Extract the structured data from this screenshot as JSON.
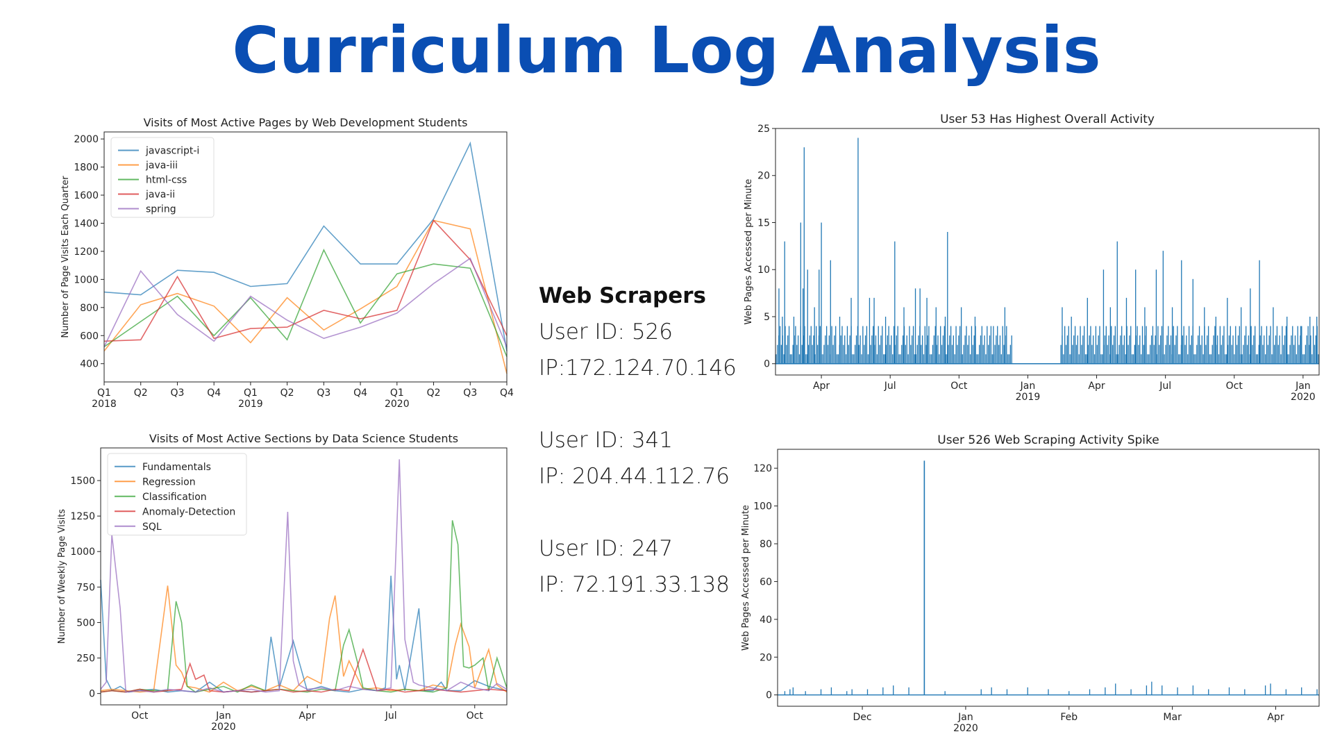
{
  "title": "Curriculum Log Analysis",
  "scrapers": {
    "heading": "Web Scrapers",
    "entries": [
      {
        "user": "User ID: 526",
        "ip": "IP:172.124.70.146"
      },
      {
        "user": "User ID: 341",
        "ip": "IP: 204.44.112.76"
      },
      {
        "user": "User ID: 247",
        "ip": "IP: 72.191.33.138"
      }
    ]
  },
  "colors": {
    "title": "#0a4eb3",
    "c0": "#1f77b4",
    "c1": "#ff7f0e",
    "c2": "#2ca02c",
    "c3": "#d62728",
    "c4": "#9467bd"
  },
  "chart_data": [
    {
      "id": "webdev",
      "type": "line",
      "title": "Visits of Most Active Pages by Web Development Students",
      "xlabel": "",
      "ylabel": "Number of Page Visits Each Quarter",
      "x_ticks": [
        {
          "label": "Q1",
          "sub": "2018"
        },
        {
          "label": "Q2",
          "sub": ""
        },
        {
          "label": "Q3",
          "sub": ""
        },
        {
          "label": "Q4",
          "sub": ""
        },
        {
          "label": "Q1",
          "sub": "2019"
        },
        {
          "label": "Q2",
          "sub": ""
        },
        {
          "label": "Q3",
          "sub": ""
        },
        {
          "label": "Q4",
          "sub": ""
        },
        {
          "label": "Q1",
          "sub": "2020"
        },
        {
          "label": "Q2",
          "sub": ""
        },
        {
          "label": "Q3",
          "sub": ""
        },
        {
          "label": "Q4",
          "sub": ""
        }
      ],
      "y_ticks": [
        400,
        600,
        800,
        1000,
        1200,
        1400,
        1600,
        1800,
        2000
      ],
      "ylim": [
        270,
        2050
      ],
      "legend": "top-left",
      "series": [
        {
          "name": "javascript-i",
          "values": [
            910,
            890,
            1065,
            1050,
            950,
            970,
            1380,
            1110,
            1110,
            1430,
            1970,
            490
          ]
        },
        {
          "name": "java-iii",
          "values": [
            490,
            820,
            900,
            810,
            550,
            870,
            640,
            790,
            950,
            1420,
            1360,
            330
          ]
        },
        {
          "name": "html-css",
          "values": [
            520,
            700,
            880,
            600,
            870,
            570,
            1210,
            690,
            1040,
            1110,
            1080,
            450
          ]
        },
        {
          "name": "java-ii",
          "values": [
            560,
            570,
            1020,
            580,
            650,
            660,
            780,
            720,
            780,
            1420,
            1140,
            600
          ]
        },
        {
          "name": "spring",
          "values": [
            520,
            1060,
            750,
            560,
            880,
            710,
            580,
            660,
            760,
            970,
            1150,
            520
          ]
        }
      ]
    },
    {
      "id": "datasci",
      "type": "line",
      "title": "Visits of Most Active Sections by Data Science Students",
      "xlabel": "",
      "ylabel": "Number of Weekly Page Visits",
      "x_ticks": [
        {
          "label": "Oct",
          "sub": "",
          "pos": 2.5
        },
        {
          "label": "Jan",
          "sub": "2020",
          "pos": 5.5
        },
        {
          "label": "Apr",
          "sub": "",
          "pos": 8.5
        },
        {
          "label": "Jul",
          "sub": "",
          "pos": 11.5
        },
        {
          "label": "Oct",
          "sub": "",
          "pos": 14.5
        }
      ],
      "y_ticks": [
        0,
        250,
        500,
        750,
        1000,
        1250,
        1500
      ],
      "xlim": [
        1.1,
        15.65
      ],
      "ylim": [
        -80,
        1730
      ],
      "legend": "top-left",
      "series": [
        {
          "name": "Fundamentals",
          "x": [
            1.1,
            1.3,
            1.5,
            1.8,
            2.1,
            2.5,
            3,
            3.5,
            4,
            4.5,
            5,
            5.5,
            6,
            6.5,
            7,
            7.2,
            7.5,
            8,
            8.5,
            9,
            9.5,
            10,
            10.5,
            11,
            11.3,
            11.5,
            11.7,
            11.8,
            12,
            12.5,
            12.7,
            13,
            13.3,
            13.5,
            14,
            14.5,
            15,
            15.65
          ],
          "y": [
            800,
            100,
            20,
            50,
            10,
            20,
            30,
            10,
            20,
            10,
            80,
            10,
            20,
            10,
            20,
            400,
            40,
            370,
            20,
            50,
            20,
            10,
            30,
            20,
            40,
            830,
            100,
            200,
            20,
            600,
            20,
            20,
            80,
            20,
            20,
            90,
            50,
            20
          ]
        },
        {
          "name": "Regression",
          "x": [
            1.1,
            1.5,
            2,
            2.5,
            3,
            3.5,
            3.8,
            4,
            4.2,
            4.5,
            5,
            5.5,
            6,
            6.5,
            7,
            7.5,
            8,
            8.5,
            9,
            9.3,
            9.5,
            9.8,
            10,
            10.5,
            11,
            11.5,
            12,
            12.5,
            13,
            13.5,
            13.8,
            14,
            14.3,
            14.5,
            14.8,
            15,
            15.3,
            15.65
          ],
          "y": [
            20,
            30,
            20,
            10,
            20,
            760,
            200,
            150,
            50,
            40,
            10,
            80,
            20,
            50,
            20,
            60,
            20,
            120,
            70,
            530,
            690,
            120,
            230,
            30,
            40,
            20,
            30,
            20,
            60,
            40,
            340,
            490,
            330,
            40,
            200,
            310,
            60,
            10
          ]
        },
        {
          "name": "Classification",
          "x": [
            1.1,
            1.5,
            2,
            2.5,
            3,
            3.5,
            3.8,
            4,
            4.2,
            4.5,
            5,
            5.5,
            6,
            6.5,
            7,
            7.5,
            8,
            8.5,
            9,
            9.5,
            9.8,
            10,
            10.3,
            10.5,
            11,
            11.5,
            12,
            12.5,
            13,
            13.5,
            13.7,
            13.9,
            14.1,
            14.3,
            14.5,
            14.8,
            15,
            15.3,
            15.65
          ],
          "y": [
            10,
            20,
            10,
            30,
            20,
            20,
            650,
            500,
            50,
            10,
            30,
            50,
            10,
            60,
            20,
            30,
            20,
            10,
            30,
            20,
            340,
            450,
            220,
            40,
            20,
            10,
            30,
            20,
            10,
            40,
            1220,
            1050,
            190,
            180,
            200,
            250,
            20,
            250,
            40
          ]
        },
        {
          "name": "Anomaly-Detection",
          "x": [
            1.1,
            1.5,
            2,
            2.5,
            3,
            3.5,
            4,
            4.3,
            4.5,
            4.8,
            5,
            5.5,
            6,
            6.5,
            7,
            7.5,
            8,
            8.5,
            9,
            9.5,
            10,
            10.5,
            11,
            11.5,
            12,
            12.5,
            13,
            13.5,
            14,
            14.5,
            15,
            15.65
          ],
          "y": [
            10,
            20,
            10,
            30,
            10,
            20,
            30,
            210,
            100,
            130,
            20,
            10,
            20,
            10,
            20,
            30,
            10,
            20,
            10,
            30,
            20,
            310,
            20,
            30,
            10,
            20,
            30,
            20,
            10,
            20,
            30,
            20
          ]
        },
        {
          "name": "SQL",
          "x": [
            1.1,
            1.3,
            1.5,
            1.8,
            2,
            2.5,
            3,
            3.5,
            4,
            4.5,
            5,
            5.5,
            6,
            6.5,
            7,
            7.5,
            7.8,
            8,
            8.2,
            8.5,
            9,
            9.5,
            10,
            10.5,
            11,
            11.5,
            11.8,
            12,
            12.3,
            12.5,
            13,
            13.5,
            14,
            14.5,
            15,
            15.3,
            15.65
          ],
          "y": [
            30,
            80,
            1120,
            600,
            10,
            20,
            10,
            30,
            20,
            10,
            40,
            10,
            20,
            30,
            10,
            20,
            1280,
            230,
            60,
            30,
            40,
            20,
            50,
            30,
            20,
            40,
            1650,
            380,
            80,
            60,
            40,
            20,
            80,
            40,
            20,
            70,
            30
          ]
        }
      ]
    },
    {
      "id": "user53",
      "type": "line",
      "title": "User 53 Has Highest Overall Activity",
      "xlabel": "",
      "ylabel": "Web Pages Accessed per Minute",
      "x_ticks": [
        {
          "label": "Apr",
          "sub": "",
          "pos": 2
        },
        {
          "label": "Jul",
          "sub": "",
          "pos": 5
        },
        {
          "label": "Oct",
          "sub": "",
          "pos": 8
        },
        {
          "label": "Jan",
          "sub": "2019",
          "pos": 11
        },
        {
          "label": "Apr",
          "sub": "",
          "pos": 14
        },
        {
          "label": "Jul",
          "sub": "",
          "pos": 17
        },
        {
          "label": "Oct",
          "sub": "",
          "pos": 20
        },
        {
          "label": "Jan",
          "sub": "2020",
          "pos": 23
        }
      ],
      "y_ticks": [
        0,
        5,
        10,
        15,
        20,
        25
      ],
      "xlim": [
        0,
        23.7
      ],
      "ylim": [
        -1.2,
        25
      ],
      "gap": [
        10.3,
        12.4
      ],
      "spikes": [
        {
          "x": 0.15,
          "y": 8
        },
        {
          "x": 0.3,
          "y": 5
        },
        {
          "x": 0.4,
          "y": 13
        },
        {
          "x": 0.8,
          "y": 5
        },
        {
          "x": 1.1,
          "y": 15
        },
        {
          "x": 1.2,
          "y": 8
        },
        {
          "x": 1.25,
          "y": 23
        },
        {
          "x": 1.4,
          "y": 10
        },
        {
          "x": 1.7,
          "y": 6
        },
        {
          "x": 1.9,
          "y": 10
        },
        {
          "x": 2.0,
          "y": 15
        },
        {
          "x": 2.4,
          "y": 11
        },
        {
          "x": 2.8,
          "y": 5
        },
        {
          "x": 3.3,
          "y": 7
        },
        {
          "x": 3.6,
          "y": 24
        },
        {
          "x": 4.1,
          "y": 7
        },
        {
          "x": 4.3,
          "y": 7
        },
        {
          "x": 4.8,
          "y": 5
        },
        {
          "x": 5.2,
          "y": 13
        },
        {
          "x": 5.6,
          "y": 6
        },
        {
          "x": 6.1,
          "y": 8
        },
        {
          "x": 6.3,
          "y": 8
        },
        {
          "x": 6.6,
          "y": 7
        },
        {
          "x": 7.0,
          "y": 6
        },
        {
          "x": 7.4,
          "y": 5
        },
        {
          "x": 7.5,
          "y": 14
        },
        {
          "x": 8.1,
          "y": 6
        },
        {
          "x": 8.7,
          "y": 5
        },
        {
          "x": 9.5,
          "y": 4
        },
        {
          "x": 10.0,
          "y": 6
        },
        {
          "x": 12.5,
          "y": 6
        },
        {
          "x": 12.9,
          "y": 5
        },
        {
          "x": 13.6,
          "y": 7
        },
        {
          "x": 14.3,
          "y": 10
        },
        {
          "x": 14.6,
          "y": 6
        },
        {
          "x": 14.9,
          "y": 13
        },
        {
          "x": 15.3,
          "y": 7
        },
        {
          "x": 15.7,
          "y": 10
        },
        {
          "x": 16.1,
          "y": 6
        },
        {
          "x": 16.6,
          "y": 10
        },
        {
          "x": 16.9,
          "y": 12
        },
        {
          "x": 17.3,
          "y": 6
        },
        {
          "x": 17.7,
          "y": 11
        },
        {
          "x": 18.2,
          "y": 9
        },
        {
          "x": 18.7,
          "y": 6
        },
        {
          "x": 19.2,
          "y": 5
        },
        {
          "x": 19.7,
          "y": 7
        },
        {
          "x": 20.3,
          "y": 6
        },
        {
          "x": 20.7,
          "y": 8
        },
        {
          "x": 21.1,
          "y": 11
        },
        {
          "x": 21.7,
          "y": 6
        },
        {
          "x": 22.3,
          "y": 5
        },
        {
          "x": 22.9,
          "y": 4
        },
        {
          "x": 23.3,
          "y": 5
        },
        {
          "x": 23.6,
          "y": 5
        }
      ]
    },
    {
      "id": "user526",
      "type": "line",
      "title": "User 526 Web Scraping Activity Spike",
      "xlabel": "",
      "ylabel": "Web Pages Accessed per Minute",
      "x_ticks": [
        {
          "label": "Dec",
          "sub": "",
          "pos": 1
        },
        {
          "label": "Jan",
          "sub": "2020",
          "pos": 2
        },
        {
          "label": "Feb",
          "sub": "",
          "pos": 3
        },
        {
          "label": "Mar",
          "sub": "",
          "pos": 4
        },
        {
          "label": "Apr",
          "sub": "",
          "pos": 5
        }
      ],
      "y_ticks": [
        0,
        20,
        40,
        60,
        80,
        100,
        120
      ],
      "xlim": [
        0.18,
        5.42
      ],
      "ylim": [
        -6,
        130
      ],
      "spike": {
        "x": 1.6,
        "y": 124
      },
      "spikes": [
        {
          "x": 0.25,
          "y": 2
        },
        {
          "x": 0.3,
          "y": 3
        },
        {
          "x": 0.33,
          "y": 4
        },
        {
          "x": 0.45,
          "y": 2
        },
        {
          "x": 0.6,
          "y": 3
        },
        {
          "x": 0.7,
          "y": 4
        },
        {
          "x": 0.85,
          "y": 2
        },
        {
          "x": 0.9,
          "y": 3
        },
        {
          "x": 1.05,
          "y": 3
        },
        {
          "x": 1.2,
          "y": 4
        },
        {
          "x": 1.3,
          "y": 5
        },
        {
          "x": 1.45,
          "y": 4
        },
        {
          "x": 1.8,
          "y": 2
        },
        {
          "x": 2.15,
          "y": 3
        },
        {
          "x": 2.25,
          "y": 4
        },
        {
          "x": 2.4,
          "y": 3
        },
        {
          "x": 2.6,
          "y": 4
        },
        {
          "x": 2.8,
          "y": 3
        },
        {
          "x": 3.0,
          "y": 2
        },
        {
          "x": 3.2,
          "y": 3
        },
        {
          "x": 3.35,
          "y": 4
        },
        {
          "x": 3.45,
          "y": 6
        },
        {
          "x": 3.6,
          "y": 3
        },
        {
          "x": 3.75,
          "y": 5
        },
        {
          "x": 3.8,
          "y": 7
        },
        {
          "x": 3.9,
          "y": 5
        },
        {
          "x": 4.05,
          "y": 4
        },
        {
          "x": 4.2,
          "y": 5
        },
        {
          "x": 4.35,
          "y": 3
        },
        {
          "x": 4.55,
          "y": 4
        },
        {
          "x": 4.7,
          "y": 3
        },
        {
          "x": 4.9,
          "y": 5
        },
        {
          "x": 4.95,
          "y": 6
        },
        {
          "x": 5.1,
          "y": 3
        },
        {
          "x": 5.25,
          "y": 4
        },
        {
          "x": 5.4,
          "y": 3
        }
      ]
    }
  ]
}
